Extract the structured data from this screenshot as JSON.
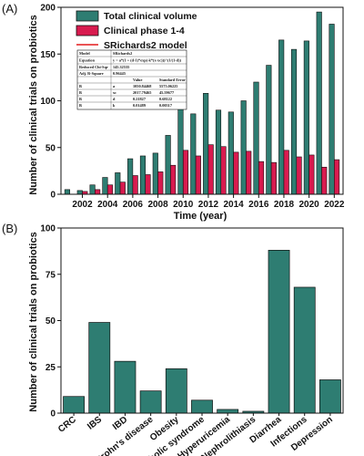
{
  "chart_data": [
    {
      "type": "bar",
      "panel_label": "(A)",
      "xlabel": "Time (year)",
      "ylabel": "Number of clinical trials on probiotics",
      "x": [
        2001,
        2002,
        2003,
        2004,
        2005,
        2006,
        2007,
        2008,
        2009,
        2010,
        2011,
        2012,
        2013,
        2014,
        2015,
        2016,
        2017,
        2018,
        2019,
        2020,
        2021,
        2022
      ],
      "xticks": [
        2002,
        2004,
        2006,
        2008,
        2010,
        2012,
        2014,
        2016,
        2018,
        2020,
        2022
      ],
      "ylim": [
        0,
        200
      ],
      "yticks": [
        0,
        50,
        100,
        150,
        200
      ],
      "series": [
        {
          "name": "Total clinical volume",
          "color": "#2e7d72",
          "values": [
            5,
            4,
            10,
            18,
            23,
            38,
            41,
            44,
            63,
            95,
            86,
            108,
            90,
            88,
            100,
            120,
            138,
            165,
            155,
            164,
            195,
            182
          ]
        },
        {
          "name": "Clinical phase 1-4",
          "color": "#d81b4f",
          "values": [
            0,
            3,
            5,
            10,
            13,
            20,
            21,
            24,
            31,
            47,
            41,
            53,
            51,
            45,
            46,
            35,
            34,
            47,
            40,
            42,
            29,
            37
          ]
        }
      ],
      "fit": {
        "name": "SRichards2 model",
        "color": "#e31a1c",
        "equation": "y = a*(1 + (d-1)*exp(-k*(x-xc)))^(1/(1-d))",
        "params": {
          "a": 1050.84468,
          "xc": 2017.7946,
          "d": 0.21827,
          "k": 0.01489
        }
      },
      "legend_position": "top-left",
      "inset_table": {
        "rows": [
          [
            "Model",
            "SRichards2",
            ""
          ],
          [
            "Equation",
            "y = a*(1 + (d-1)*exp(-k*(x-xc)))^(1/(1-d))",
            ""
          ],
          [
            "Reduced Chi-Sqr",
            "145.32535",
            ""
          ],
          [
            "Adj. R-Square",
            "0.96445",
            ""
          ]
        ],
        "param_header": [
          "",
          "",
          "Value",
          "Standard Error"
        ],
        "params": [
          [
            "B",
            "a",
            "1050.84468",
            "5575.06225"
          ],
          [
            "B",
            "xc",
            "2017.79465",
            "45.59677"
          ],
          [
            "B",
            "d",
            "0.21827",
            "0.68122"
          ],
          [
            "B",
            "k",
            "0.01489",
            "0.00517"
          ]
        ]
      }
    },
    {
      "type": "bar",
      "panel_label": "(B)",
      "xlabel": "",
      "ylabel": "Number of clinical trials on probiotics",
      "categories": [
        "CRC",
        "IBS",
        "IBD",
        "Crohn's disease",
        "Obesity",
        "Metabolic syndrome",
        "Hyperuricemia",
        "Nephrolithiasis",
        "Diarrhea",
        "Infections",
        "Depression"
      ],
      "values": [
        9,
        49,
        28,
        12,
        24,
        7,
        2,
        1,
        88,
        68,
        18
      ],
      "color": "#2e7d72",
      "ylim": [
        0,
        100
      ],
      "yticks": [
        0,
        25,
        50,
        75,
        100
      ]
    }
  ]
}
